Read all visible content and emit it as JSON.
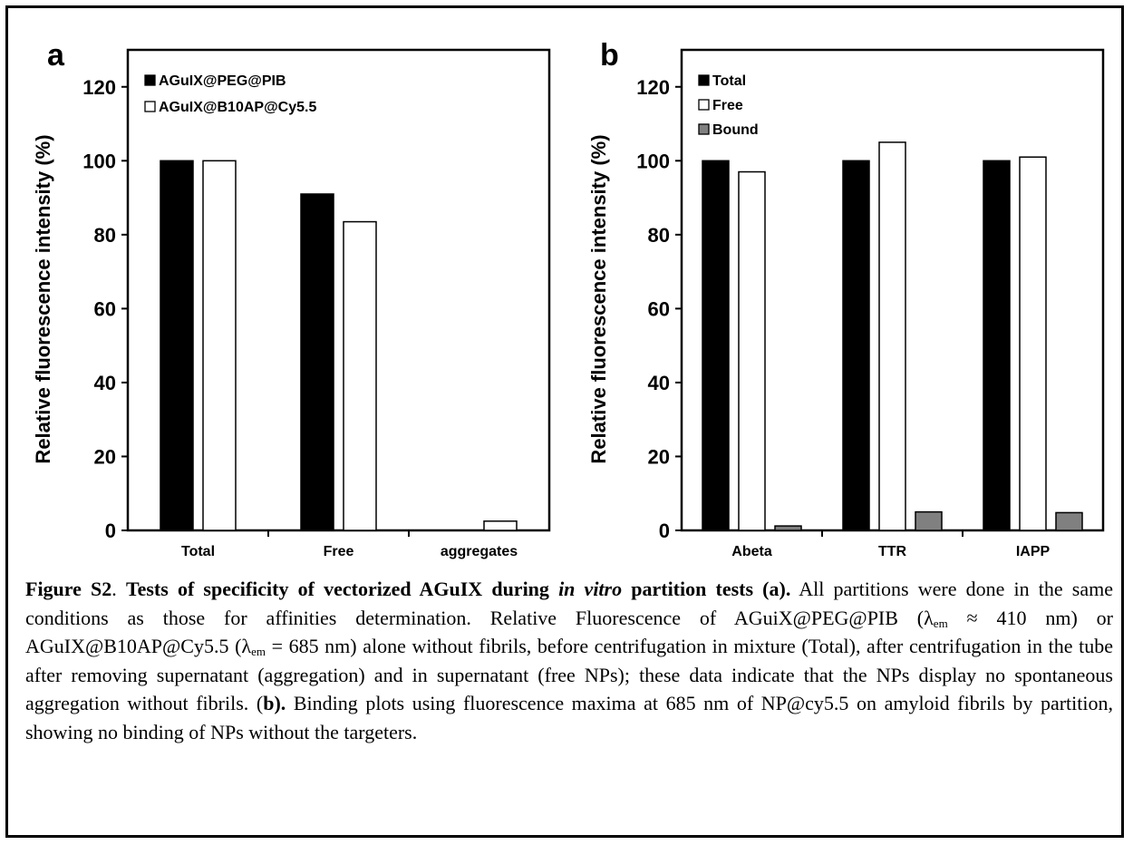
{
  "chart_data": [
    {
      "type": "bar",
      "panel": "a",
      "ylabel": "Relative fluorescence intensity (%)",
      "ylim": [
        0,
        130
      ],
      "yticks": [
        0,
        20,
        40,
        60,
        80,
        100,
        120
      ],
      "categories": [
        "Total",
        "Free",
        "aggregates"
      ],
      "series": [
        {
          "name": "AGuIX@PEG@PIB",
          "color": "#000000",
          "values": [
            100,
            91,
            0
          ]
        },
        {
          "name": "AGuIX@B10AP@Cy5.5",
          "color": "#ffffff",
          "values": [
            100,
            83.5,
            2.5
          ]
        }
      ],
      "legend": "top-left",
      "grid": false
    },
    {
      "type": "bar",
      "panel": "b",
      "ylabel": "Relative fluorescence intensity (%)",
      "ylim": [
        0,
        130
      ],
      "yticks": [
        0,
        20,
        40,
        60,
        80,
        100,
        120
      ],
      "categories": [
        "Abeta",
        "TTR",
        "IAPP"
      ],
      "series": [
        {
          "name": "Total",
          "color": "#000000",
          "values": [
            100,
            100,
            100
          ]
        },
        {
          "name": "Free",
          "color": "#ffffff",
          "values": [
            97,
            105,
            101
          ]
        },
        {
          "name": "Bound",
          "color": "#808080",
          "values": [
            1.2,
            5,
            4.8
          ]
        }
      ],
      "legend": "top-left",
      "grid": false
    }
  ],
  "caption": {
    "fig_label": "Figure S2",
    "dot1": ". ",
    "title_a": "Tests of specificity of vectorized AGuIX during ",
    "title_italic": "in vitro",
    "title_b": " partition tests (a).",
    "text1": " All partitions were done in the same conditions as those for affinities determination. Relative Fluorescence of AGuiX@PEG@PIB (λ",
    "sub1": "em",
    "text2": " ≈ 410 nm) or AGuIX@B10AP@Cy5.5 (λ",
    "sub2": "em",
    "text3": " = 685 nm) alone without fibrils, before centrifugation in mixture (Total), after centrifugation in the tube after removing supernatant (aggregation) and in supernatant (free NPs); these data indicate that the NPs display no spontaneous aggregation without fibrils. (",
    "b_label": "b).",
    "text4": " Binding plots using fluorescence maxima at 685 nm of NP@cy5.5 on amyloid fibrils by partition, showing no binding of NPs without the targeters."
  }
}
